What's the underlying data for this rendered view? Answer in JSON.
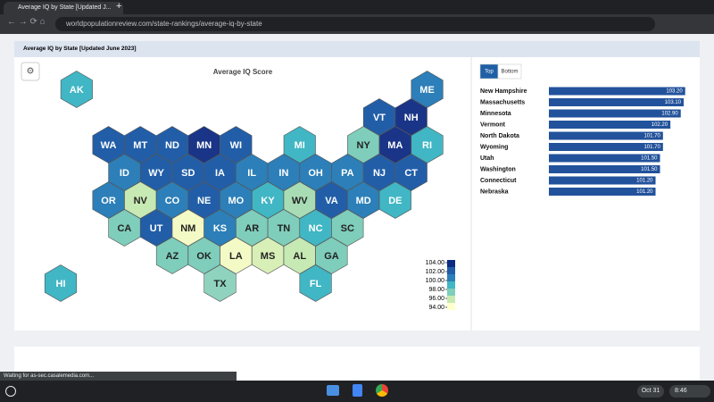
{
  "browser": {
    "tab_title": "Average IQ by State [Updated J...",
    "url": "worldpopulationreview.com/state-rankings/average-iq-by-state",
    "status": "Waiting for as-sec.casalemedia.com..."
  },
  "card_title": "Average IQ by State [Updated June 2023]",
  "map": {
    "title": "Average IQ Score",
    "hexes": [
      {
        "label": "AK",
        "color": "#41b6c4"
      },
      {
        "label": "ME",
        "color": "#2c7fb8"
      },
      {
        "label": "VT",
        "color": "#225ea8"
      },
      {
        "label": "NH",
        "color": "#1a3587"
      },
      {
        "label": "WA",
        "color": "#225ea8"
      },
      {
        "label": "MT",
        "color": "#225ea8"
      },
      {
        "label": "ND",
        "color": "#225ea8"
      },
      {
        "label": "MN",
        "color": "#1a3587"
      },
      {
        "label": "WI",
        "color": "#225ea8"
      },
      {
        "label": "MI",
        "color": "#41b6c4"
      },
      {
        "label": "NY",
        "color": "#7fcdbb"
      },
      {
        "label": "MA",
        "color": "#1a3587"
      },
      {
        "label": "RI",
        "color": "#41b6c4"
      },
      {
        "label": "ID",
        "color": "#2c7fb8"
      },
      {
        "label": "WY",
        "color": "#225ea8"
      },
      {
        "label": "SD",
        "color": "#225ea8"
      },
      {
        "label": "IA",
        "color": "#225ea8"
      },
      {
        "label": "IL",
        "color": "#2c7fb8"
      },
      {
        "label": "IN",
        "color": "#2c7fb8"
      },
      {
        "label": "OH",
        "color": "#2c7fb8"
      },
      {
        "label": "PA",
        "color": "#2c7fb8"
      },
      {
        "label": "NJ",
        "color": "#225ea8"
      },
      {
        "label": "CT",
        "color": "#225ea8"
      },
      {
        "label": "OR",
        "color": "#2c7fb8"
      },
      {
        "label": "NV",
        "color": "#c7e9b4"
      },
      {
        "label": "CO",
        "color": "#2c7fb8"
      },
      {
        "label": "NE",
        "color": "#225ea8"
      },
      {
        "label": "MO",
        "color": "#2c7fb8"
      },
      {
        "label": "KY",
        "color": "#41b6c4"
      },
      {
        "label": "WV",
        "color": "#a8dcb5"
      },
      {
        "label": "VA",
        "color": "#225ea8"
      },
      {
        "label": "MD",
        "color": "#2c7fb8"
      },
      {
        "label": "DE",
        "color": "#41b6c4"
      },
      {
        "label": "CA",
        "color": "#7fcdbb"
      },
      {
        "label": "UT",
        "color": "#225ea8"
      },
      {
        "label": "NM",
        "color": "#f4fac5"
      },
      {
        "label": "KS",
        "color": "#2c7fb8"
      },
      {
        "label": "AR",
        "color": "#7fcdbb"
      },
      {
        "label": "TN",
        "color": "#7fcdbb"
      },
      {
        "label": "NC",
        "color": "#41b6c4"
      },
      {
        "label": "SC",
        "color": "#7fcdbb"
      },
      {
        "label": "AZ",
        "color": "#7fcdbb"
      },
      {
        "label": "OK",
        "color": "#7fcdbb"
      },
      {
        "label": "LA",
        "color": "#f4fac5"
      },
      {
        "label": "MS",
        "color": "#d8f0b8"
      },
      {
        "label": "AL",
        "color": "#c7e9b4"
      },
      {
        "label": "GA",
        "color": "#7fcdbb"
      },
      {
        "label": "HI",
        "color": "#41b6c4"
      },
      {
        "label": "TX",
        "color": "#8fd3bf"
      },
      {
        "label": "FL",
        "color": "#41b6c4"
      }
    ],
    "legend": {
      "ticks": [
        {
          "value": 104,
          "label": "104.00"
        },
        {
          "value": 102,
          "label": "102.00"
        },
        {
          "value": 100,
          "label": "100.00"
        },
        {
          "value": 98,
          "label": "98.00"
        },
        {
          "value": 96,
          "label": "96.00"
        },
        {
          "value": 94,
          "label": "94.00"
        }
      ],
      "colors": [
        "#0c2c84",
        "#225ea8",
        "#2c7fb8",
        "#41b6c4",
        "#7fcdbb",
        "#c7e9b4",
        "#ffffcc"
      ]
    }
  },
  "ranking": {
    "tabs": [
      "Top",
      "Bottom"
    ],
    "color": "#22529b",
    "categories": [
      "New Hampshire",
      "Massachusetts",
      "Minnesota",
      "Vermont",
      "North Dakota",
      "Wyoming",
      "Utah",
      "Washington",
      "Connecticut",
      "Nebraska"
    ],
    "values": [
      103.2,
      103.1,
      102.9,
      102.2,
      101.7,
      101.7,
      101.5,
      101.5,
      101.2,
      101.2
    ],
    "value_labels": [
      "103.20",
      "103.10",
      "102.90",
      "102.20",
      "101.70",
      "101.70",
      "101.50",
      "101.50",
      "101.20",
      "101.20"
    ]
  },
  "taskbar": {
    "date": "Oct 31",
    "time": "8:46"
  }
}
